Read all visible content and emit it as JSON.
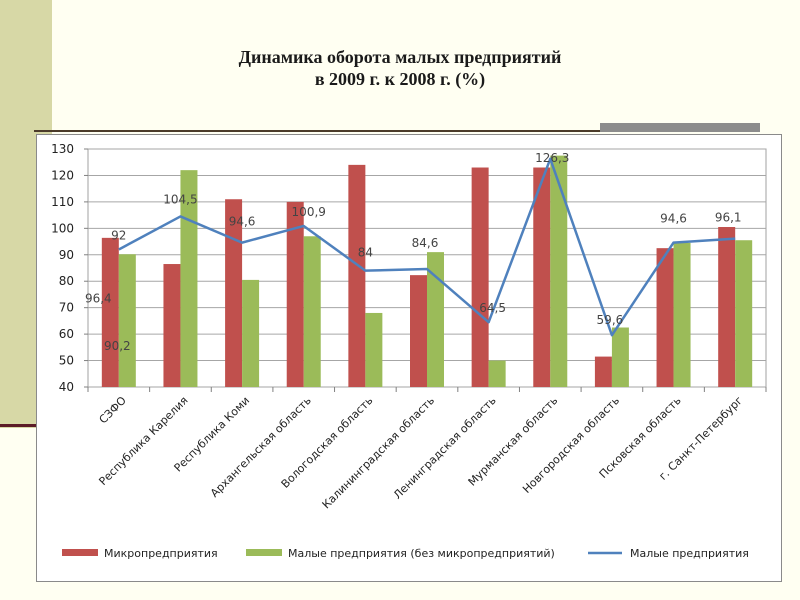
{
  "title_line1": "Динамика оборота малых предприятий",
  "title_line2": "в 2009 г. к 2008 г. (%)",
  "chart_data": {
    "type": "bar",
    "ylim": [
      40,
      130
    ],
    "yticks": [
      40,
      50,
      60,
      70,
      80,
      90,
      100,
      110,
      120,
      130
    ],
    "grid": true,
    "legend_position": "bottom",
    "categories": [
      "СЗФО",
      "Республика Карелия",
      "Республика Коми",
      "Архангельская область",
      "Вологодская область",
      "Калининградская область",
      "Ленинградская область",
      "Мурманская область",
      "Новгородская область",
      "Псковская область",
      "г. Санкт-Петербург"
    ],
    "series": [
      {
        "name": "Микропредприятия",
        "type": "bar",
        "color": "#c0504d",
        "values": [
          96.4,
          86.5,
          111,
          110,
          124,
          82.3,
          123,
          123,
          51.5,
          92.5,
          100.5
        ]
      },
      {
        "name": "Малые предприятия (без микропредприятий)",
        "type": "bar",
        "color": "#9bbb59",
        "values": [
          90.2,
          122,
          80.5,
          97,
          68,
          91,
          50,
          127.5,
          62.5,
          94.5,
          95.5
        ]
      },
      {
        "name": "Малые предприятия",
        "type": "line",
        "color": "#4f81bd",
        "values": [
          92,
          104.5,
          94.6,
          100.9,
          84,
          84.6,
          64.5,
          126.3,
          59.6,
          94.6,
          96.1
        ]
      }
    ],
    "data_labels": [
      {
        "text": "92",
        "series": 2,
        "index": 0
      },
      {
        "text": "96,4",
        "series": 0,
        "index": 0
      },
      {
        "text": "90,2",
        "series": 1,
        "index": 0
      },
      {
        "text": "104,5",
        "series": 2,
        "index": 1
      },
      {
        "text": "94,6",
        "series": 2,
        "index": 2
      },
      {
        "text": "100,9",
        "series": 2,
        "index": 3
      },
      {
        "text": "84",
        "series": 2,
        "index": 4
      },
      {
        "text": "84,6",
        "series": 2,
        "index": 5
      },
      {
        "text": "64,5",
        "series": 2,
        "index": 6
      },
      {
        "text": "126,3",
        "series": 2,
        "index": 7
      },
      {
        "text": "59,6",
        "series": 2,
        "index": 8
      },
      {
        "text": "94,6",
        "series": 2,
        "index": 9
      },
      {
        "text": "96,1",
        "series": 2,
        "index": 10
      }
    ]
  }
}
